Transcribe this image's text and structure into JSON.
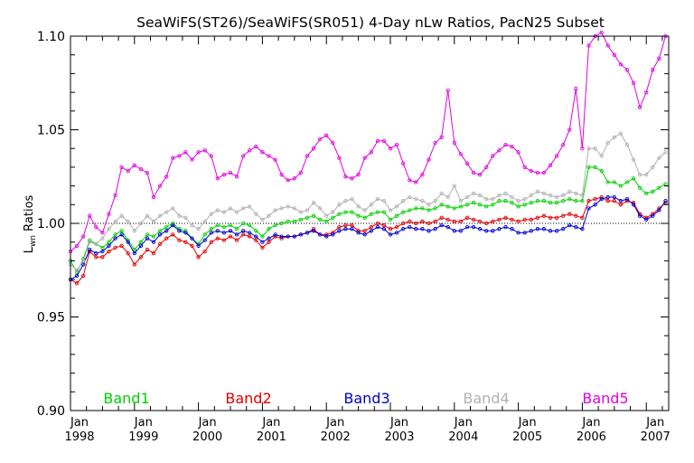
{
  "chart_data": {
    "type": "line",
    "title": "SeaWiFS(ST26)/SeaWiFS(SR051) 4-Day nLw Ratios, PacN25 Subset",
    "xlabel": "",
    "ylabel": "L",
    "ylabel_subscript": "wn",
    "ylabel_suffix": " Ratios",
    "xlim": [
      1998.0,
      2007.35
    ],
    "ylim": [
      0.9,
      1.1
    ],
    "yticks": [
      "0.90",
      "0.95",
      "1.00",
      "1.05",
      "1.10"
    ],
    "xticks": [
      {
        "month": "Jan",
        "year": "1998"
      },
      {
        "month": "Jan",
        "year": "1999"
      },
      {
        "month": "Jan",
        "year": "2000"
      },
      {
        "month": "Jan",
        "year": "2001"
      },
      {
        "month": "Jan",
        "year": "2002"
      },
      {
        "month": "Jan",
        "year": "2003"
      },
      {
        "month": "Jan",
        "year": "2004"
      },
      {
        "month": "Jan",
        "year": "2005"
      },
      {
        "month": "Jan",
        "year": "2006"
      },
      {
        "month": "Jan",
        "year": "2007"
      }
    ],
    "reference_line": 1.0,
    "grid": false,
    "legend_placement": "bottom, inside plot",
    "x": [
      1998.0,
      1998.1,
      1998.2,
      1998.3,
      1998.4,
      1998.5,
      1998.6,
      1998.7,
      1998.8,
      1998.9,
      1999.0,
      1999.1,
      1999.2,
      1999.3,
      1999.4,
      1999.5,
      1999.6,
      1999.7,
      1999.8,
      1999.9,
      2000.0,
      2000.1,
      2000.2,
      2000.3,
      2000.4,
      2000.5,
      2000.6,
      2000.7,
      2000.8,
      2000.9,
      2001.0,
      2001.1,
      2001.2,
      2001.3,
      2001.4,
      2001.5,
      2001.6,
      2001.7,
      2001.8,
      2001.9,
      2002.0,
      2002.1,
      2002.2,
      2002.3,
      2002.4,
      2002.5,
      2002.6,
      2002.7,
      2002.8,
      2002.9,
      2003.0,
      2003.1,
      2003.2,
      2003.3,
      2003.4,
      2003.5,
      2003.6,
      2003.7,
      2003.8,
      2003.9,
      2004.0,
      2004.1,
      2004.2,
      2004.3,
      2004.4,
      2004.5,
      2004.6,
      2004.7,
      2004.8,
      2004.9,
      2005.0,
      2005.1,
      2005.2,
      2005.3,
      2005.4,
      2005.5,
      2005.6,
      2005.7,
      2005.8,
      2005.9,
      2006.0,
      2006.1,
      2006.2,
      2006.3,
      2006.4,
      2006.5,
      2006.6,
      2006.7,
      2006.8,
      2006.9,
      2007.0,
      2007.1,
      2007.2,
      2007.3
    ],
    "series": [
      {
        "name": "Band1",
        "color": "#00d000",
        "values": [
          0.98,
          0.974,
          0.981,
          0.991,
          0.989,
          0.987,
          0.99,
          0.994,
          0.996,
          0.991,
          0.986,
          0.99,
          0.994,
          0.993,
          0.996,
          0.998,
          1.0,
          0.997,
          0.996,
          0.992,
          0.989,
          0.994,
          0.997,
          0.999,
          0.998,
          0.999,
          0.997,
          1.0,
          0.999,
          0.996,
          0.993,
          0.997,
          0.999,
          1.0,
          1.001,
          1.001,
          1.002,
          1.003,
          1.004,
          1.002,
          1.001,
          1.003,
          1.005,
          1.006,
          1.006,
          1.004,
          1.003,
          1.005,
          1.006,
          1.006,
          1.002,
          1.004,
          1.006,
          1.007,
          1.008,
          1.008,
          1.007,
          1.008,
          1.01,
          1.009,
          1.008,
          1.009,
          1.01,
          1.011,
          1.01,
          1.009,
          1.01,
          1.012,
          1.012,
          1.011,
          1.009,
          1.01,
          1.011,
          1.012,
          1.012,
          1.011,
          1.011,
          1.012,
          1.013,
          1.012,
          1.012,
          1.03,
          1.03,
          1.028,
          1.022,
          1.022,
          1.02,
          1.022,
          1.024,
          1.019,
          1.016,
          1.017,
          1.019,
          1.021
        ]
      },
      {
        "name": "Band2",
        "color": "#e00000",
        "values": [
          0.97,
          0.968,
          0.972,
          0.985,
          0.982,
          0.982,
          0.985,
          0.987,
          0.988,
          0.984,
          0.978,
          0.982,
          0.986,
          0.984,
          0.989,
          0.992,
          0.994,
          0.991,
          0.99,
          0.988,
          0.982,
          0.985,
          0.99,
          0.992,
          0.991,
          0.993,
          0.991,
          0.994,
          0.993,
          0.991,
          0.987,
          0.99,
          0.993,
          0.992,
          0.993,
          0.993,
          0.994,
          0.995,
          0.997,
          0.994,
          0.994,
          0.995,
          0.998,
          0.999,
          0.999,
          0.996,
          0.996,
          0.998,
          1.0,
          0.999,
          0.997,
          0.998,
          1.0,
          1.001,
          1.0,
          1.001,
          1.0,
          1.001,
          1.003,
          1.002,
          1.001,
          1.001,
          1.003,
          1.002,
          1.001,
          1.0,
          1.001,
          1.002,
          1.003,
          1.002,
          1.001,
          1.002,
          1.002,
          1.003,
          1.004,
          1.003,
          1.003,
          1.004,
          1.005,
          1.004,
          1.003,
          1.012,
          1.013,
          1.014,
          1.012,
          1.012,
          1.01,
          1.012,
          1.011,
          1.005,
          1.003,
          1.005,
          1.008,
          1.011
        ]
      },
      {
        "name": "Band3",
        "color": "#0000d0",
        "values": [
          0.97,
          0.972,
          0.978,
          0.986,
          0.984,
          0.985,
          0.988,
          0.992,
          0.994,
          0.99,
          0.984,
          0.988,
          0.992,
          0.99,
          0.994,
          0.996,
          0.999,
          0.996,
          0.995,
          0.992,
          0.988,
          0.991,
          0.995,
          0.996,
          0.995,
          0.996,
          0.994,
          0.996,
          0.995,
          0.993,
          0.99,
          0.992,
          0.994,
          0.993,
          0.993,
          0.993,
          0.994,
          0.995,
          0.996,
          0.994,
          0.993,
          0.994,
          0.996,
          0.997,
          0.997,
          0.995,
          0.994,
          0.996,
          0.998,
          0.997,
          0.994,
          0.995,
          0.997,
          0.998,
          0.997,
          0.997,
          0.996,
          0.997,
          0.999,
          0.998,
          0.996,
          0.996,
          0.998,
          0.998,
          0.997,
          0.996,
          0.996,
          0.997,
          0.998,
          0.997,
          0.995,
          0.995,
          0.996,
          0.997,
          0.997,
          0.996,
          0.996,
          0.997,
          0.999,
          0.998,
          0.997,
          1.008,
          1.01,
          1.013,
          1.014,
          1.014,
          1.012,
          1.013,
          1.01,
          1.004,
          1.002,
          1.004,
          1.007,
          1.012
        ]
      },
      {
        "name": "Band4",
        "color": "#b0b0b0",
        "values": [
          0.978,
          0.975,
          0.98,
          0.99,
          0.989,
          0.992,
          0.997,
          1.001,
          1.004,
          1.001,
          0.996,
          1.0,
          1.004,
          1.001,
          1.004,
          1.006,
          1.008,
          1.004,
          1.003,
          0.999,
          0.997,
          1.001,
          1.005,
          1.007,
          1.006,
          1.008,
          1.006,
          1.008,
          1.009,
          1.005,
          1.002,
          1.004,
          1.007,
          1.008,
          1.009,
          1.008,
          1.006,
          1.007,
          1.011,
          1.008,
          1.004,
          1.006,
          1.01,
          1.012,
          1.013,
          1.009,
          1.007,
          1.01,
          1.013,
          1.012,
          1.007,
          1.009,
          1.012,
          1.014,
          1.013,
          1.012,
          1.01,
          1.012,
          1.016,
          1.014,
          1.02,
          1.012,
          1.014,
          1.016,
          1.015,
          1.013,
          1.013,
          1.015,
          1.016,
          1.014,
          1.012,
          1.013,
          1.015,
          1.017,
          1.016,
          1.015,
          1.014,
          1.015,
          1.017,
          1.016,
          1.015,
          1.04,
          1.04,
          1.036,
          1.043,
          1.046,
          1.048,
          1.042,
          1.034,
          1.026,
          1.026,
          1.03,
          1.035,
          1.038
        ]
      },
      {
        "name": "Band5",
        "color": "#e000e0",
        "values": [
          0.985,
          0.988,
          0.993,
          1.004,
          0.998,
          0.995,
          1.005,
          1.015,
          1.03,
          1.028,
          1.031,
          1.029,
          1.027,
          1.014,
          1.02,
          1.025,
          1.035,
          1.036,
          1.038,
          1.034,
          1.038,
          1.039,
          1.036,
          1.024,
          1.026,
          1.027,
          1.025,
          1.036,
          1.039,
          1.041,
          1.038,
          1.036,
          1.034,
          1.026,
          1.023,
          1.024,
          1.027,
          1.036,
          1.04,
          1.045,
          1.047,
          1.043,
          1.035,
          1.025,
          1.024,
          1.026,
          1.035,
          1.038,
          1.044,
          1.044,
          1.04,
          1.042,
          1.032,
          1.023,
          1.022,
          1.026,
          1.034,
          1.043,
          1.046,
          1.071,
          1.043,
          1.037,
          1.032,
          1.027,
          1.026,
          1.03,
          1.036,
          1.039,
          1.042,
          1.041,
          1.038,
          1.03,
          1.028,
          1.027,
          1.027,
          1.031,
          1.036,
          1.042,
          1.05,
          1.072,
          1.04,
          1.095,
          1.1,
          1.102,
          1.095,
          1.09,
          1.085,
          1.082,
          1.075,
          1.062,
          1.07,
          1.082,
          1.088,
          1.1
        ]
      }
    ]
  }
}
